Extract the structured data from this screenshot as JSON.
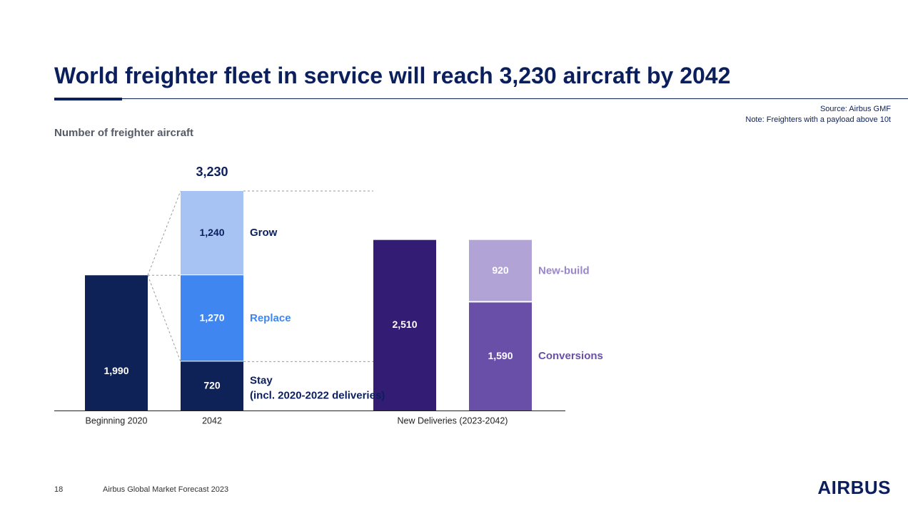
{
  "header": {
    "title": "World freighter fleet in service will reach 3,230 aircraft by 2042",
    "source": "Source: Airbus GMF",
    "note": "Note: Freighters with a payload above 10t",
    "subtitle": "Number of freighter aircraft"
  },
  "footer": {
    "page_number": "18",
    "text": "Airbus Global Market Forecast 2023",
    "logo": "AIRBUS"
  },
  "colors": {
    "navy": "#0b1f5c",
    "dark_navy_bar": "#0e2257",
    "grow": "#a7c3f4",
    "replace": "#3f86f0",
    "deliveries": "#331c74",
    "newbuild": "#b1a3d6",
    "conversions": "#6a4fa8",
    "label_replace": "#3f86f0",
    "label_newbuild": "#9b86cc",
    "label_conversions": "#6a4fa8"
  },
  "chart_data": {
    "type": "bar",
    "title": "World freighter fleet in service will reach 3,230 aircraft by 2042",
    "ylabel": "Number of freighter aircraft",
    "categories": [
      "Beginning 2020",
      "2042",
      "New Deliveries (2023-2042)"
    ],
    "ylim": [
      0,
      3230
    ],
    "grid": false,
    "stacks": [
      {
        "category": "Beginning 2020",
        "segments": [
          {
            "name": "",
            "value": 1990,
            "label": "1,990"
          }
        ]
      },
      {
        "category": "2042",
        "total_label": "3,230",
        "segments": [
          {
            "name": "Stay",
            "note": "(incl. 2020-2022 deliveries)",
            "value": 720,
            "label": "720"
          },
          {
            "name": "Replace",
            "value": 1270,
            "label": "1,270"
          },
          {
            "name": "Grow",
            "value": 1240,
            "label": "1,240"
          }
        ]
      },
      {
        "category": "New Deliveries (2023-2042)",
        "segments": [
          {
            "name": "",
            "value": 2510,
            "label": "2,510"
          }
        ]
      },
      {
        "category": "",
        "segments": [
          {
            "name": "Conversions",
            "value": 1590,
            "label": "1,590"
          },
          {
            "name": "New-build",
            "value": 920,
            "label": "920"
          }
        ]
      }
    ]
  }
}
